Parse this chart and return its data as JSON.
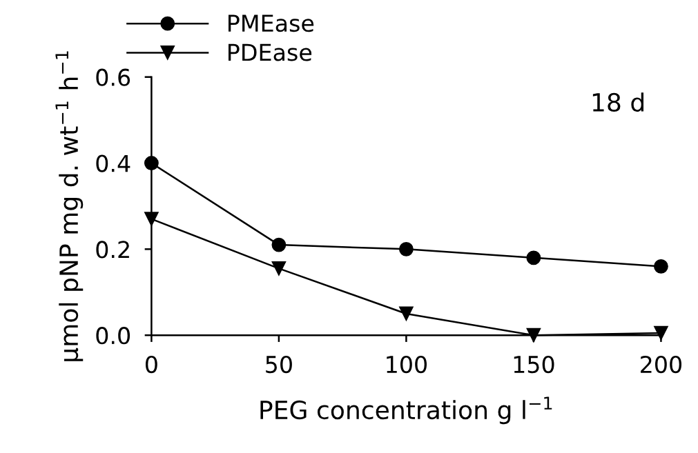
{
  "chart_data": {
    "type": "line",
    "xlabel": "PEG concentration g l$^{−1}$",
    "ylabel": "μmol pNP mg d. wt$^{−1}$ h$^{−1}$",
    "annotations": [
      "18 d"
    ],
    "x": [
      0,
      50,
      100,
      150,
      200
    ],
    "series": [
      {
        "name": "PMEase",
        "color": "#000000",
        "marker": "circle",
        "values": [
          0.4,
          0.21,
          0.2,
          0.18,
          0.16
        ]
      },
      {
        "name": "PDEase",
        "color": "#000000",
        "marker": "triangle",
        "values": [
          0.27,
          0.155,
          0.05,
          0.0,
          0.005
        ]
      }
    ],
    "xlim": [
      0,
      200
    ],
    "xticks": [
      0,
      50,
      100,
      150,
      200
    ],
    "ylim": [
      0,
      0.6
    ],
    "yticks": [
      {
        "value": 0,
        "label": "0.0"
      },
      {
        "value": 0.2,
        "label": "0.2"
      },
      {
        "value": 0.4,
        "label": "0.4"
      },
      {
        "value": 0.6,
        "label": "0.6"
      }
    ],
    "grid": false,
    "legend": "top",
    "line_style": "solid"
  }
}
